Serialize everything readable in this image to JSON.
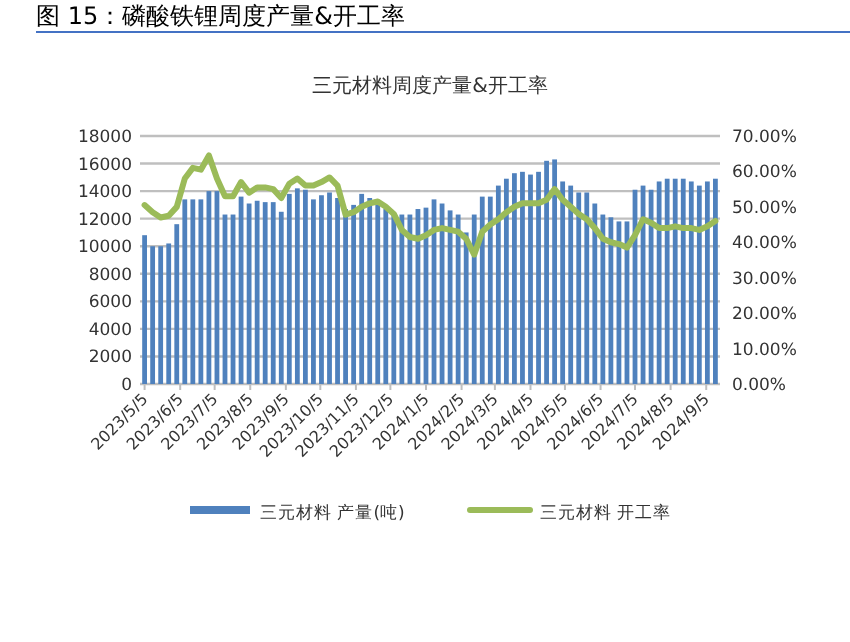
{
  "chart_data": {
    "type": "bar",
    "title": "三元材料周度产量&开工率",
    "annotations": [
      "图 15：磷酸铁锂周度产量&开工率"
    ],
    "xlim": [
      "2023-05-01",
      "2024-09-17"
    ],
    "x": [
      "2023-05-05",
      "2023-05-12",
      "2023-05-19",
      "2023-05-26",
      "2023-06-02",
      "2023-06-09",
      "2023-06-16",
      "2023-06-23",
      "2023-06-30",
      "2023-07-07",
      "2023-07-14",
      "2023-07-21",
      "2023-07-28",
      "2023-08-04",
      "2023-08-11",
      "2023-08-18",
      "2023-08-25",
      "2023-09-01",
      "2023-09-08",
      "2023-09-15",
      "2023-09-22",
      "2023-09-29",
      "2023-10-06",
      "2023-10-13",
      "2023-10-20",
      "2023-10-27",
      "2023-11-03",
      "2023-11-10",
      "2023-11-17",
      "2023-11-24",
      "2023-12-01",
      "2023-12-08",
      "2023-12-15",
      "2023-12-22",
      "2023-12-29",
      "2024-01-05",
      "2024-01-12",
      "2024-01-19",
      "2024-01-26",
      "2024-02-02",
      "2024-02-09",
      "2024-02-16",
      "2024-02-23",
      "2024-03-01",
      "2024-03-08",
      "2024-03-15",
      "2024-03-22",
      "2024-03-29",
      "2024-04-05",
      "2024-04-12",
      "2024-04-19",
      "2024-04-26",
      "2024-05-03",
      "2024-05-10",
      "2024-05-17",
      "2024-05-24",
      "2024-05-31",
      "2024-06-07",
      "2024-06-14",
      "2024-06-21",
      "2024-06-28",
      "2024-07-05",
      "2024-07-12",
      "2024-07-19",
      "2024-07-26",
      "2024-08-02",
      "2024-08-09",
      "2024-08-16",
      "2024-08-23",
      "2024-08-30",
      "2024-09-06",
      "2024-09-13"
    ],
    "xticks": [
      {
        "value": "2023-05-05",
        "label": "2023/5/5"
      },
      {
        "value": "2023-06-05",
        "label": "2023/6/5"
      },
      {
        "value": "2023-07-05",
        "label": "2023/7/5"
      },
      {
        "value": "2023-08-05",
        "label": "2023/8/5"
      },
      {
        "value": "2023-09-05",
        "label": "2023/9/5"
      },
      {
        "value": "2023-10-05",
        "label": "2023/10/5"
      },
      {
        "value": "2023-11-05",
        "label": "2023/11/5"
      },
      {
        "value": "2023-12-05",
        "label": "2023/12/5"
      },
      {
        "value": "2024-01-05",
        "label": "2024/1/5"
      },
      {
        "value": "2024-02-05",
        "label": "2024/2/5"
      },
      {
        "value": "2024-03-05",
        "label": "2024/3/5"
      },
      {
        "value": "2024-04-05",
        "label": "2024/4/5"
      },
      {
        "value": "2024-05-05",
        "label": "2024/5/5"
      },
      {
        "value": "2024-06-05",
        "label": "2024/6/5"
      },
      {
        "value": "2024-07-05",
        "label": "2024/7/5"
      },
      {
        "value": "2024-08-05",
        "label": "2024/8/5"
      },
      {
        "value": "2024-09-05",
        "label": "2024/9/5"
      }
    ],
    "ylim": [
      0,
      18000
    ],
    "yticks": [
      0,
      2000,
      4000,
      6000,
      8000,
      10000,
      12000,
      14000,
      16000,
      18000
    ],
    "y2lim": [
      0,
      70
    ],
    "y2ticks": [
      {
        "value": 0,
        "label": "0.00%"
      },
      {
        "value": 10,
        "label": "10.00%"
      },
      {
        "value": 20,
        "label": "20.00%"
      },
      {
        "value": 30,
        "label": "30.00%"
      },
      {
        "value": 40,
        "label": "40.00%"
      },
      {
        "value": 50,
        "label": "50.00%"
      },
      {
        "value": 60,
        "label": "60.00%"
      },
      {
        "value": 70,
        "label": "70.00%"
      }
    ],
    "grid": "y",
    "legend": "bottom",
    "series": [
      {
        "name": "三元材料 产量(吨)",
        "color": "#4f81bd",
        "values": [
          10800,
          10000,
          10000,
          10200,
          11600,
          13400,
          13400,
          13400,
          14000,
          14000,
          12300,
          12300,
          13600,
          13100,
          13300,
          13200,
          13200,
          12500,
          13800,
          14200,
          14100,
          13400,
          13700,
          13900,
          13500,
          12700,
          13000,
          13800,
          13500,
          13000,
          12700,
          12400,
          12300,
          12300,
          12700,
          12800,
          13400,
          13100,
          12600,
          12300,
          11000,
          12300,
          13600,
          13600,
          14400,
          14900,
          15300,
          15400,
          15200,
          15400,
          16200,
          16300,
          14700,
          14400,
          13900,
          13900,
          13100,
          12300,
          12100,
          11800,
          11800,
          14100,
          14400,
          14100,
          14700,
          14900,
          14900,
          14900,
          14700,
          14400,
          14700,
          14900
        ]
      },
      {
        "name": "三元材料 开工率",
        "type": "line",
        "axis": "y2",
        "color": "#9bbb59",
        "values": [
          50.5,
          48.5,
          47,
          47.5,
          50,
          58,
          61,
          60.5,
          64.5,
          58,
          53,
          53,
          57,
          54,
          55.5,
          55.5,
          55,
          52.5,
          56.5,
          58,
          56,
          56,
          57,
          58.3,
          56,
          47.8,
          48.5,
          50,
          51,
          51.5,
          50,
          48,
          43.5,
          41.5,
          41,
          42,
          43.5,
          44,
          43.5,
          43,
          41,
          36.5,
          43,
          45,
          46.5,
          48.5,
          50,
          51,
          51,
          51,
          52,
          55,
          52,
          50,
          48,
          46.5,
          44,
          41,
          40,
          39.5,
          38.5,
          42,
          46.5,
          45.5,
          44,
          44,
          44.5,
          44,
          44,
          43.5,
          44.5,
          46
        ]
      }
    ]
  }
}
